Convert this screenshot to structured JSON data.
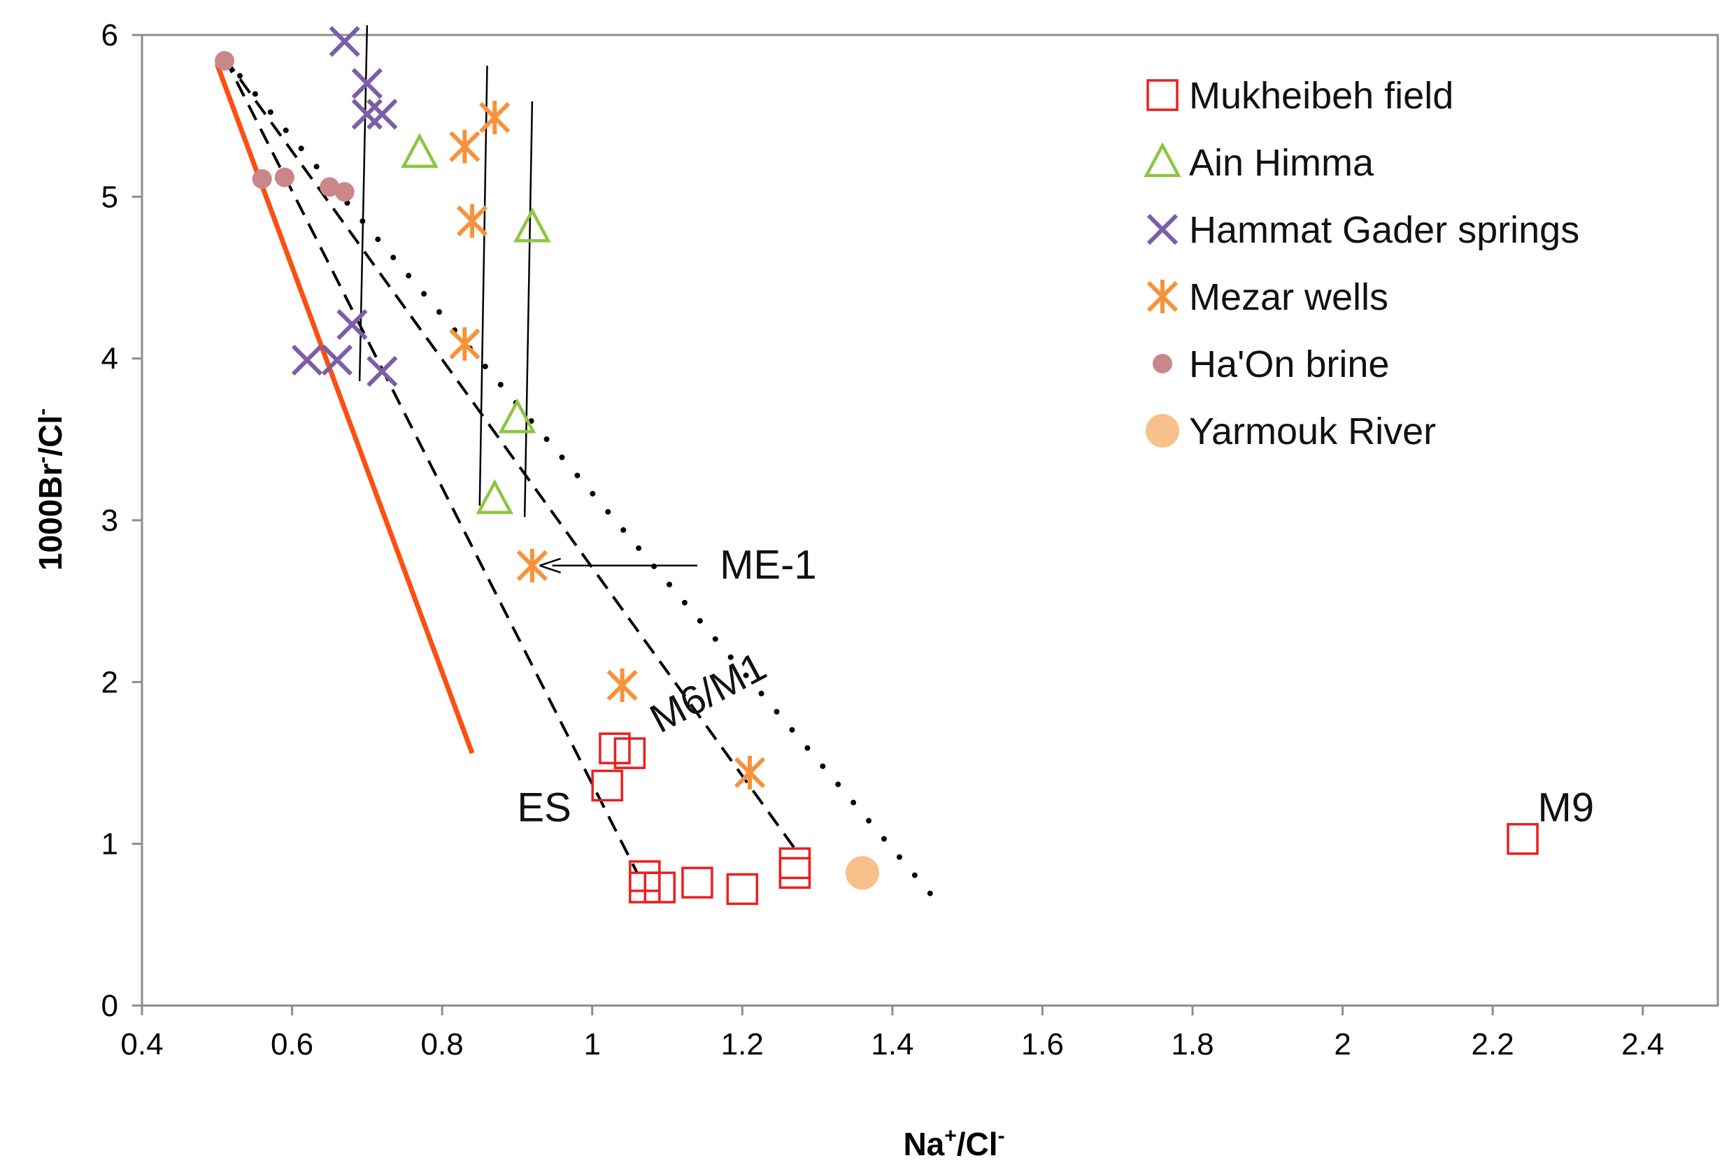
{
  "chart_data": {
    "type": "scatter",
    "title": "",
    "xlabel": {
      "base": "Na",
      "sup1": "+",
      "mid": "/Cl",
      "sup2": "-"
    },
    "ylabel": {
      "base": "1000Br",
      "sup1": "-",
      "mid": "/Cl",
      "sup2": "-"
    },
    "xlim": [
      0.4,
      2.5
    ],
    "ylim": [
      0,
      6
    ],
    "xticks": [
      "0.4",
      "0.6",
      "0.8",
      "1",
      "1.2",
      "1.4",
      "1.6",
      "1.8",
      "2",
      "2.2",
      "2.4"
    ],
    "yticks": [
      "0",
      "1",
      "2",
      "3",
      "4",
      "5",
      "6"
    ],
    "grid": false,
    "legend_position": "top-right",
    "series": [
      {
        "name": "Mukheibeh field",
        "marker": "square",
        "color": "#e8201f",
        "points": [
          [
            1.03,
            1.59
          ],
          [
            1.05,
            1.56
          ],
          [
            1.02,
            1.36
          ],
          [
            1.07,
            0.8
          ],
          [
            1.07,
            0.73
          ],
          [
            1.09,
            0.73
          ],
          [
            1.14,
            0.76
          ],
          [
            1.2,
            0.72
          ],
          [
            1.27,
            0.88
          ],
          [
            1.27,
            0.82
          ],
          [
            2.24,
            1.03
          ]
        ]
      },
      {
        "name": "Ain Himma",
        "marker": "triangle",
        "color": "#8cc63f",
        "points": [
          [
            0.77,
            5.27
          ],
          [
            0.92,
            4.81
          ],
          [
            0.9,
            3.63
          ],
          [
            0.87,
            3.13
          ]
        ]
      },
      {
        "name": "Hammat Gader springs",
        "marker": "x",
        "color": "#7b5ea7",
        "points": [
          [
            0.67,
            5.96
          ],
          [
            0.7,
            5.7
          ],
          [
            0.7,
            5.51
          ],
          [
            0.72,
            5.51
          ],
          [
            0.68,
            4.21
          ],
          [
            0.62,
            3.99
          ],
          [
            0.66,
            3.99
          ],
          [
            0.72,
            3.92
          ]
        ]
      },
      {
        "name": "Mezar wells",
        "marker": "star",
        "color": "#f7923a",
        "points": [
          [
            0.87,
            5.49
          ],
          [
            0.83,
            5.31
          ],
          [
            0.84,
            4.85
          ],
          [
            0.83,
            4.09
          ],
          [
            0.92,
            2.72
          ],
          [
            1.04,
            1.98
          ],
          [
            1.21,
            1.44
          ]
        ]
      },
      {
        "name": "Ha'On brine",
        "marker": "dot",
        "color": "#c9878a",
        "points": [
          [
            0.51,
            5.84
          ],
          [
            0.56,
            5.11
          ],
          [
            0.59,
            5.12
          ],
          [
            0.65,
            5.06
          ],
          [
            0.67,
            5.03
          ]
        ]
      },
      {
        "name": "Yarmouk River",
        "marker": "bigdot",
        "color": "#f8c08a",
        "points": [
          [
            1.36,
            0.82
          ]
        ]
      }
    ],
    "lines": [
      {
        "style": "solid-thick",
        "color": "#fa5012",
        "points": [
          [
            0.5,
            5.82
          ],
          [
            0.84,
            1.56
          ]
        ]
      },
      {
        "style": "dashed",
        "color": "#000000",
        "points": [
          [
            0.51,
            5.86
          ],
          [
            1.06,
            0.82
          ]
        ]
      },
      {
        "style": "dashed",
        "color": "#000000",
        "points": [
          [
            0.51,
            5.86
          ],
          [
            1.27,
            0.97
          ]
        ]
      },
      {
        "style": "dotted",
        "color": "#000000",
        "points": [
          [
            0.51,
            5.86
          ],
          [
            1.46,
            0.64
          ]
        ]
      },
      {
        "style": "thin",
        "color": "#000000",
        "points": [
          [
            0.7,
            6.06
          ],
          [
            0.69,
            3.86
          ]
        ]
      },
      {
        "style": "thin",
        "color": "#000000",
        "points": [
          [
            0.86,
            5.81
          ],
          [
            0.85,
            3.09
          ]
        ]
      },
      {
        "style": "thin",
        "color": "#000000",
        "points": [
          [
            0.92,
            5.59
          ],
          [
            0.91,
            3.02
          ]
        ]
      }
    ],
    "annotations": [
      {
        "text": "ME-1",
        "x": 1.17,
        "y": 2.64,
        "arrow_from": [
          1.14,
          2.72
        ],
        "arrow_to": [
          0.93,
          2.72
        ]
      },
      {
        "text": "M6/M1",
        "x": 1.09,
        "y": 1.68,
        "rotate": -28
      },
      {
        "text": "ES",
        "x": 0.9,
        "y": 1.14
      },
      {
        "text": "M9",
        "x": 2.26,
        "y": 1.14
      }
    ]
  }
}
